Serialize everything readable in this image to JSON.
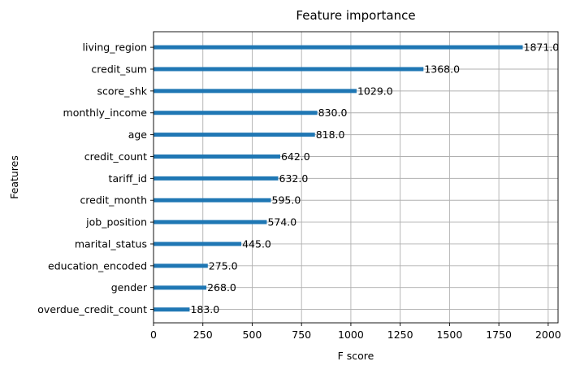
{
  "chart_data": {
    "type": "bar",
    "orientation": "horizontal",
    "title": "Feature importance",
    "xlabel": "F score",
    "ylabel": "Features",
    "xlim": [
      0,
      2050
    ],
    "xticks": [
      0,
      250,
      500,
      750,
      1000,
      1250,
      1500,
      1750,
      2000
    ],
    "grid": true,
    "bar_color": "#1f77b4",
    "categories": [
      "overdue_credit_count",
      "gender",
      "education_encoded",
      "marital_status",
      "job_position",
      "credit_month",
      "tariff_id",
      "credit_count",
      "age",
      "monthly_income",
      "score_shk",
      "credit_sum",
      "living_region"
    ],
    "values": [
      183,
      268,
      275,
      445,
      574,
      595,
      632,
      642,
      818,
      830,
      1029,
      1368,
      1871
    ],
    "value_labels": [
      "183.0",
      "268.0",
      "275.0",
      "445.0",
      "574.0",
      "595.0",
      "632.0",
      "642.0",
      "818.0",
      "830.0",
      "1029.0",
      "1368.0",
      "1871.0"
    ]
  }
}
